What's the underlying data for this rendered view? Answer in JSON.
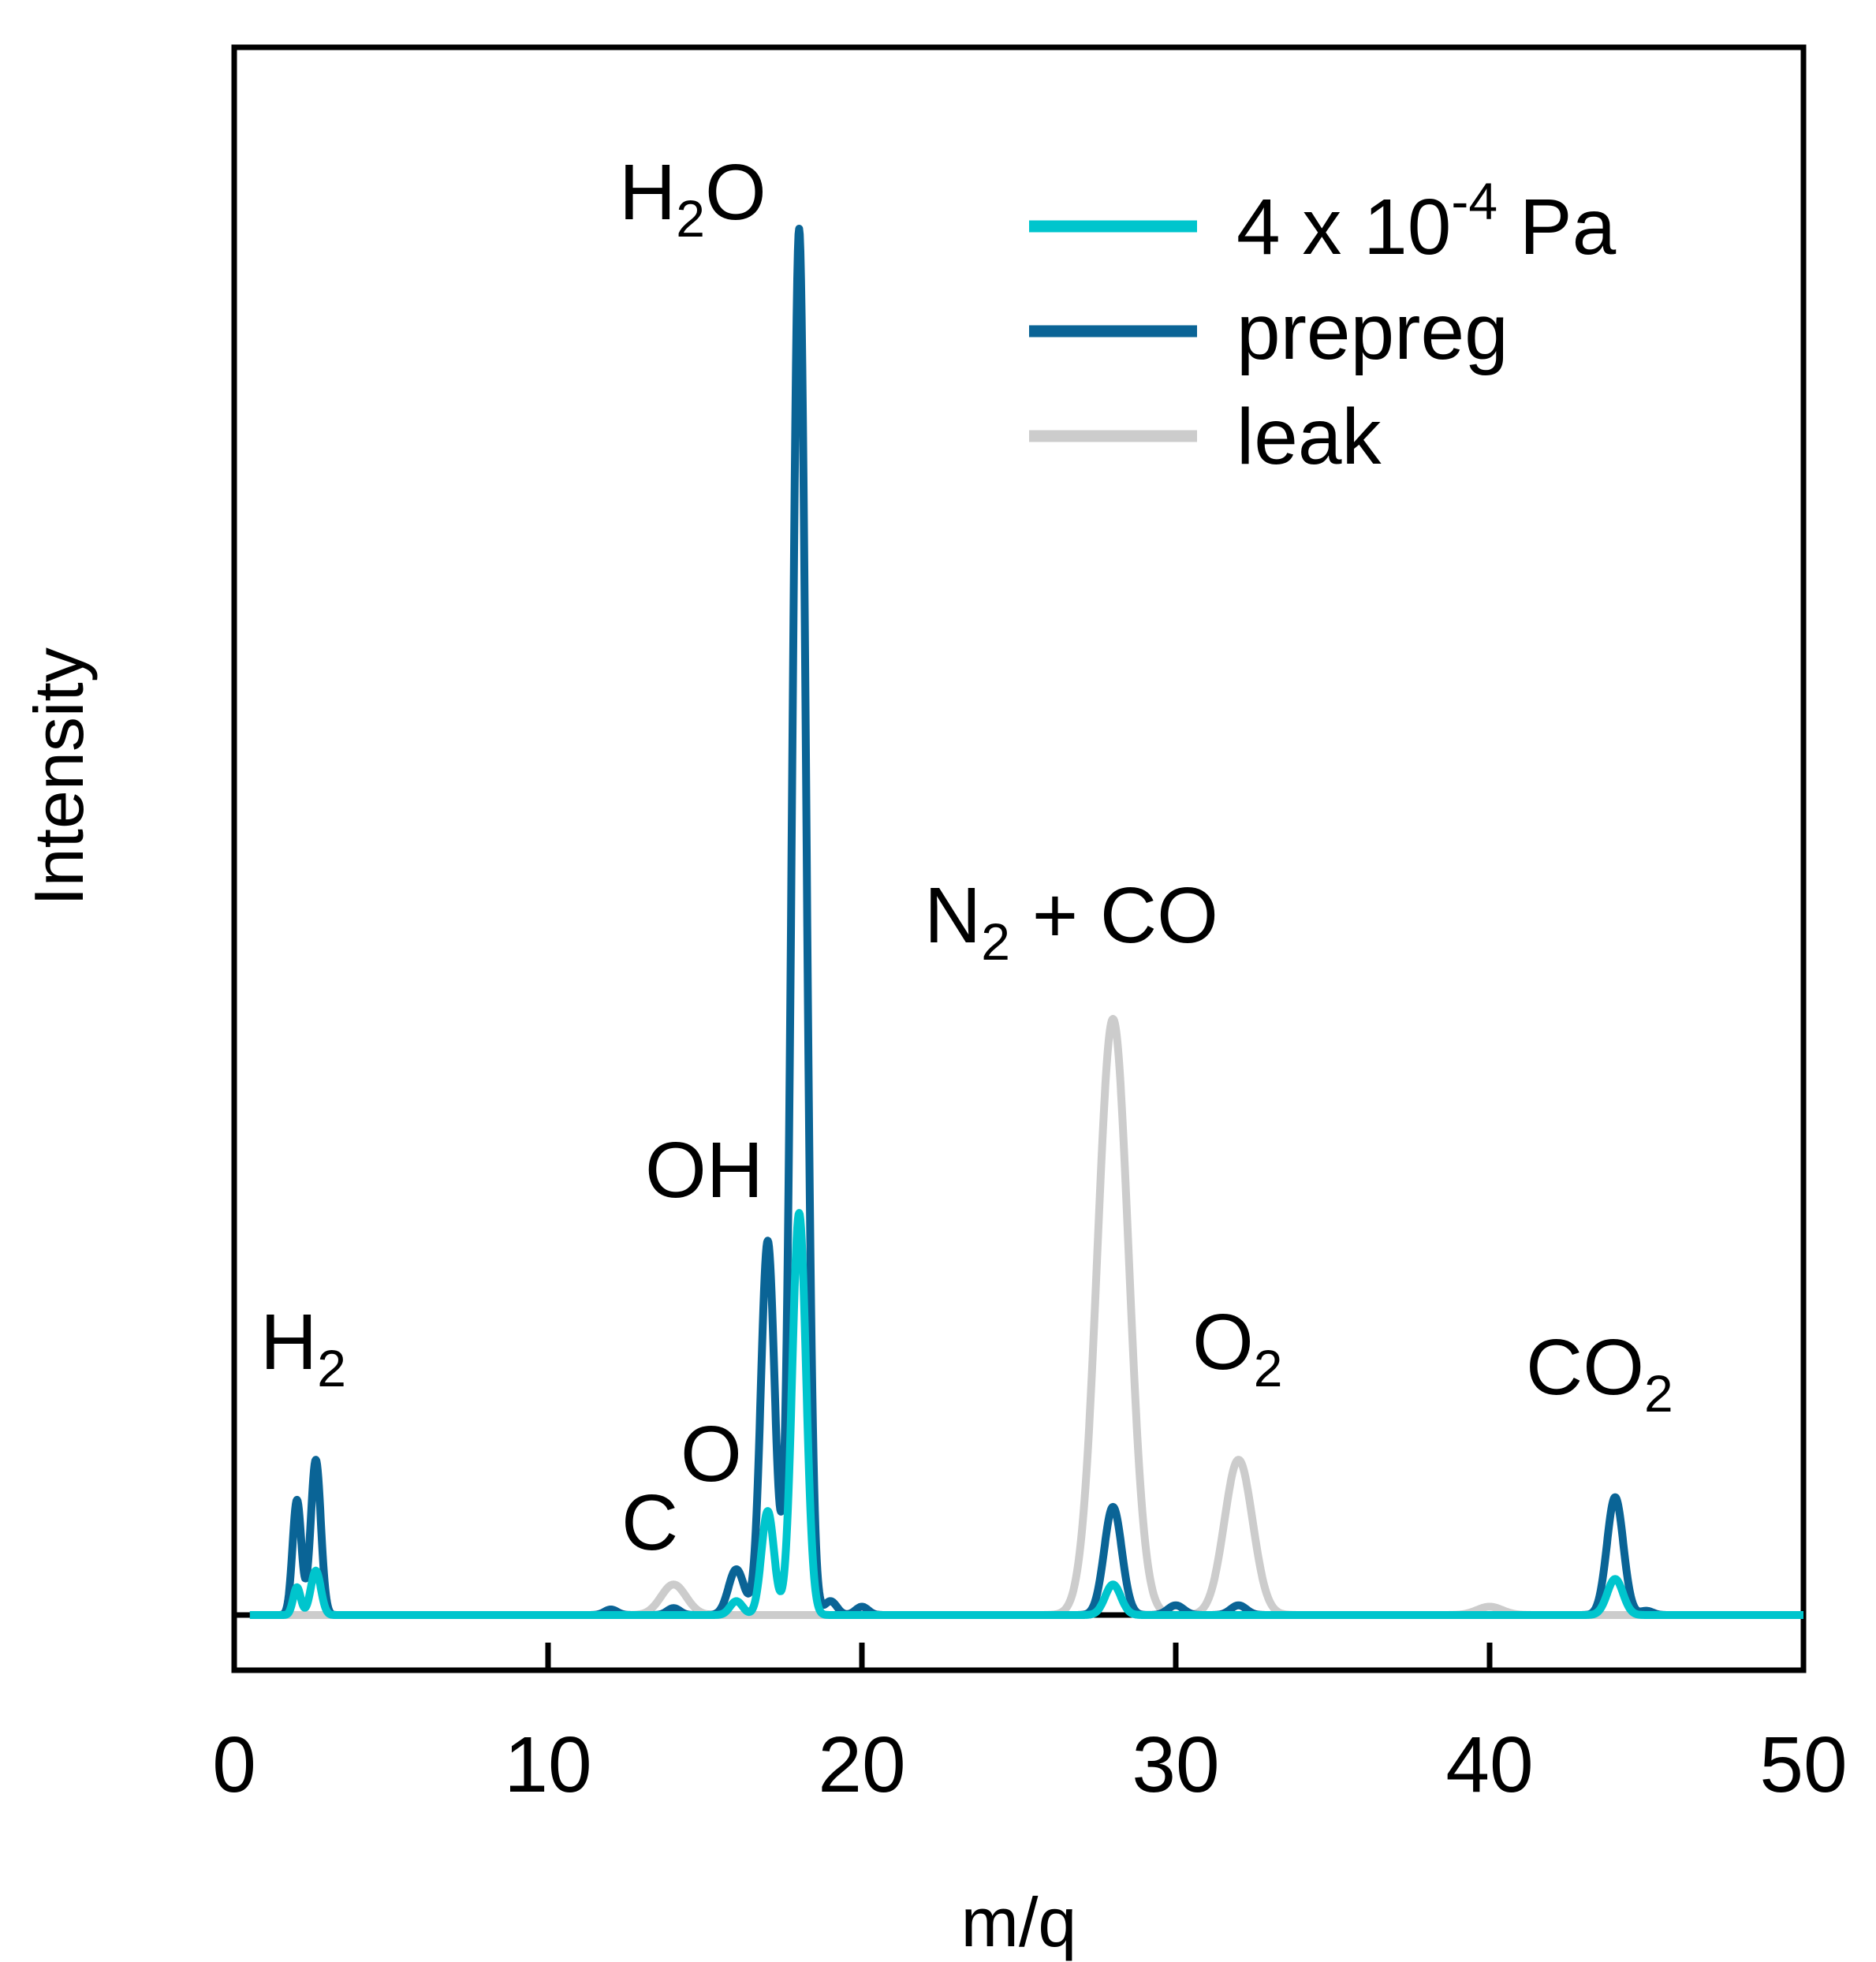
{
  "chart_data": {
    "type": "line",
    "xlabel": "m/q",
    "ylabel": "Intensity",
    "xlim": [
      0,
      50
    ],
    "ylim": [
      0,
      1
    ],
    "xticks": [
      "0",
      "10",
      "20",
      "30",
      "40",
      "50"
    ],
    "grid": false,
    "legend_position": "top-right",
    "colors": {
      "pressure": "#00c5cd",
      "prepreg": "#0a6496",
      "leak": "#cccccc"
    },
    "legend": {
      "pressure": {
        "base": "4 x 10",
        "sup": "-4",
        "tail": " Pa"
      },
      "prepreg": "prepreg",
      "leak": "leak"
    },
    "annotations": {
      "h2o": {
        "main": "H",
        "sub": "2",
        "tail": "O"
      },
      "oh": "OH",
      "co_c": "C",
      "co_o": "O",
      "n2co": {
        "main": "N",
        "sub": "2",
        "tail": " + CO"
      },
      "h2": {
        "main": "H",
        "sub": "2"
      },
      "o2": {
        "main": "O",
        "sub": "2"
      },
      "co2": {
        "main": "CO",
        "sub": "2"
      }
    },
    "series": [
      {
        "name": "leak",
        "peaks": [
          {
            "x": 14.0,
            "y": 0.022,
            "w": 0.4
          },
          {
            "x": 28.0,
            "y": 0.43,
            "w": 0.5
          },
          {
            "x": 32.0,
            "y": 0.112,
            "w": 0.45
          },
          {
            "x": 40.0,
            "y": 0.006,
            "w": 0.4
          }
        ]
      },
      {
        "name": "prepreg",
        "peaks": [
          {
            "x": 2.0,
            "y": 0.083,
            "w": 0.14
          },
          {
            "x": 2.6,
            "y": 0.112,
            "w": 0.16
          },
          {
            "x": 12.0,
            "y": 0.004,
            "w": 0.2
          },
          {
            "x": 14.0,
            "y": 0.005,
            "w": 0.2
          },
          {
            "x": 16.0,
            "y": 0.033,
            "w": 0.25
          },
          {
            "x": 17.0,
            "y": 0.27,
            "w": 0.22
          },
          {
            "x": 18.0,
            "y": 1.0,
            "w": 0.22
          },
          {
            "x": 19.0,
            "y": 0.01,
            "w": 0.2
          },
          {
            "x": 20.0,
            "y": 0.006,
            "w": 0.2
          },
          {
            "x": 28.0,
            "y": 0.078,
            "w": 0.28
          },
          {
            "x": 30.0,
            "y": 0.007,
            "w": 0.25
          },
          {
            "x": 32.0,
            "y": 0.007,
            "w": 0.25
          },
          {
            "x": 44.0,
            "y": 0.085,
            "w": 0.26
          },
          {
            "x": 45.0,
            "y": 0.003,
            "w": 0.2
          }
        ]
      },
      {
        "name": "4 x 10-4 Pa",
        "peaks": [
          {
            "x": 2.0,
            "y": 0.02,
            "w": 0.12
          },
          {
            "x": 2.6,
            "y": 0.032,
            "w": 0.16
          },
          {
            "x": 16.0,
            "y": 0.01,
            "w": 0.2
          },
          {
            "x": 17.0,
            "y": 0.075,
            "w": 0.2
          },
          {
            "x": 18.0,
            "y": 0.29,
            "w": 0.22
          },
          {
            "x": 28.0,
            "y": 0.022,
            "w": 0.25
          },
          {
            "x": 44.0,
            "y": 0.026,
            "w": 0.25
          }
        ]
      }
    ]
  }
}
